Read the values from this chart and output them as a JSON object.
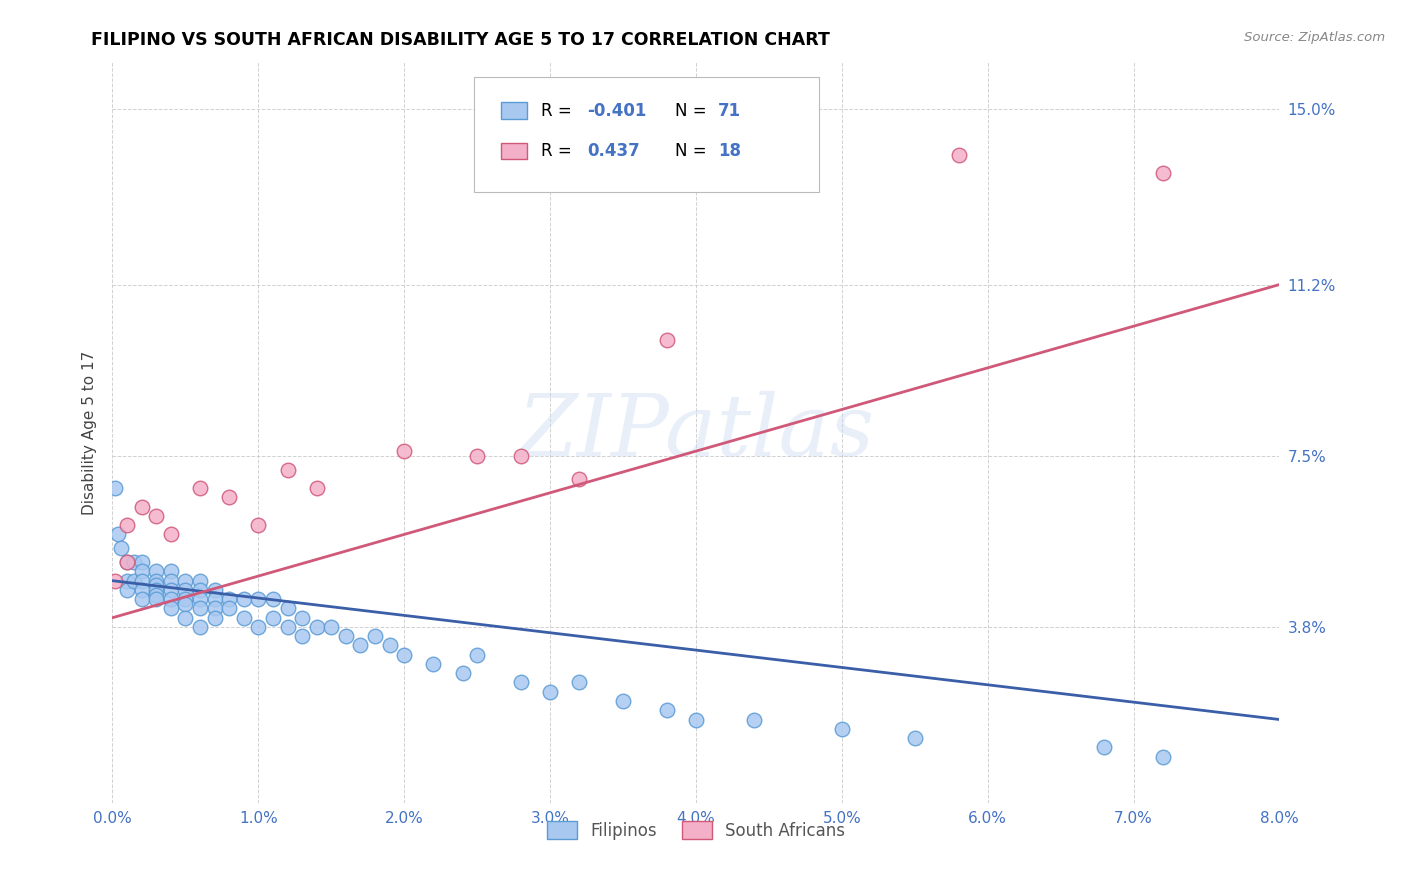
{
  "title": "FILIPINO VS SOUTH AFRICAN DISABILITY AGE 5 TO 17 CORRELATION CHART",
  "source": "Source: ZipAtlas.com",
  "ylabel": "Disability Age 5 to 17",
  "xlim": [
    0.0,
    0.08
  ],
  "ylim": [
    0.0,
    0.16
  ],
  "ytick_vals": [
    0.038,
    0.075,
    0.112,
    0.15
  ],
  "ytick_labels": [
    "3.8%",
    "7.5%",
    "11.2%",
    "15.0%"
  ],
  "xtick_vals": [
    0.0,
    0.01,
    0.02,
    0.03,
    0.04,
    0.05,
    0.06,
    0.07,
    0.08
  ],
  "xtick_labels": [
    "0.0%",
    "1.0%",
    "2.0%",
    "3.0%",
    "4.0%",
    "5.0%",
    "6.0%",
    "7.0%",
    "8.0%"
  ],
  "filipino_color": "#a8c8f0",
  "filipino_edge": "#5b9bd5",
  "sa_color": "#f4b0c8",
  "sa_edge": "#d05878",
  "line_blue": "#3a5fa8",
  "line_pink": "#d05878",
  "watermark": "ZIPatlas",
  "filipino_x": [
    0.0002,
    0.0004,
    0.0006,
    0.001,
    0.001,
    0.001,
    0.0015,
    0.0015,
    0.002,
    0.002,
    0.002,
    0.002,
    0.002,
    0.003,
    0.003,
    0.003,
    0.003,
    0.003,
    0.003,
    0.004,
    0.004,
    0.004,
    0.004,
    0.004,
    0.005,
    0.005,
    0.005,
    0.005,
    0.005,
    0.006,
    0.006,
    0.006,
    0.006,
    0.006,
    0.007,
    0.007,
    0.007,
    0.007,
    0.008,
    0.008,
    0.009,
    0.009,
    0.01,
    0.01,
    0.011,
    0.011,
    0.012,
    0.012,
    0.013,
    0.013,
    0.014,
    0.015,
    0.016,
    0.017,
    0.018,
    0.019,
    0.02,
    0.022,
    0.024,
    0.025,
    0.028,
    0.03,
    0.032,
    0.035,
    0.038,
    0.04,
    0.044,
    0.05,
    0.055,
    0.068,
    0.072
  ],
  "filipino_y": [
    0.068,
    0.058,
    0.055,
    0.052,
    0.048,
    0.046,
    0.052,
    0.048,
    0.052,
    0.05,
    0.048,
    0.046,
    0.044,
    0.05,
    0.048,
    0.047,
    0.046,
    0.045,
    0.044,
    0.05,
    0.048,
    0.046,
    0.044,
    0.042,
    0.048,
    0.046,
    0.044,
    0.043,
    0.04,
    0.048,
    0.046,
    0.044,
    0.042,
    0.038,
    0.046,
    0.044,
    0.042,
    0.04,
    0.044,
    0.042,
    0.044,
    0.04,
    0.044,
    0.038,
    0.044,
    0.04,
    0.042,
    0.038,
    0.04,
    0.036,
    0.038,
    0.038,
    0.036,
    0.034,
    0.036,
    0.034,
    0.032,
    0.03,
    0.028,
    0.032,
    0.026,
    0.024,
    0.026,
    0.022,
    0.02,
    0.018,
    0.018,
    0.016,
    0.014,
    0.012,
    0.01
  ],
  "sa_x": [
    0.0002,
    0.001,
    0.001,
    0.002,
    0.003,
    0.004,
    0.006,
    0.008,
    0.01,
    0.012,
    0.014,
    0.02,
    0.025,
    0.028,
    0.032,
    0.038,
    0.058,
    0.072
  ],
  "sa_y": [
    0.048,
    0.052,
    0.06,
    0.064,
    0.062,
    0.058,
    0.068,
    0.066,
    0.06,
    0.072,
    0.068,
    0.076,
    0.075,
    0.075,
    0.07,
    0.1,
    0.14,
    0.136
  ],
  "blue_line_x": [
    0.0,
    0.08
  ],
  "blue_line_y": [
    0.048,
    0.018
  ],
  "pink_line_x": [
    0.0,
    0.08
  ],
  "pink_line_y": [
    0.04,
    0.112
  ]
}
